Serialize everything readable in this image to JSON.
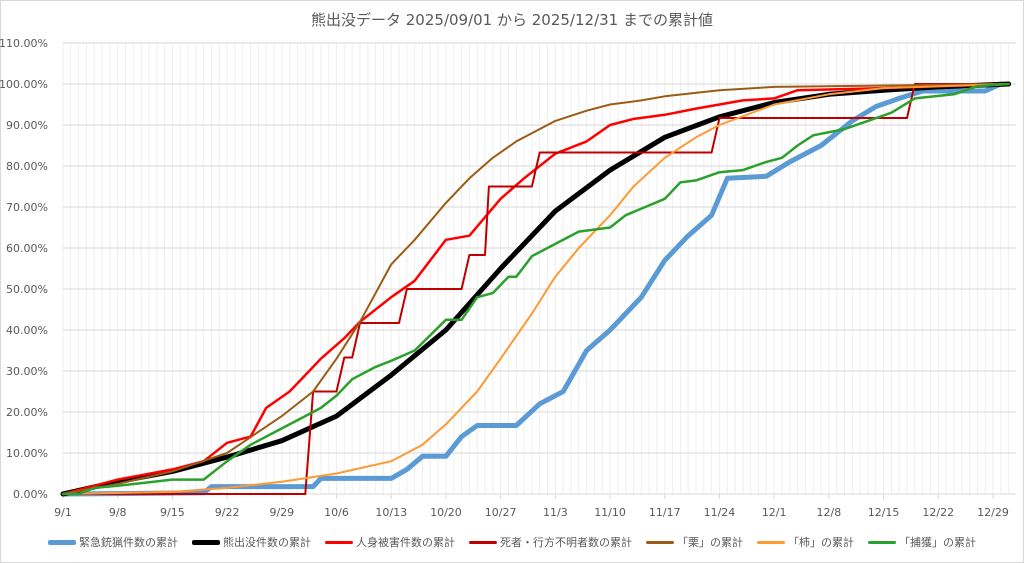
{
  "chart_data": {
    "type": "line",
    "title": "熊出没データ 2025/09/01 から 2025/12/31 までの累計値",
    "xlabel": "",
    "ylabel": "",
    "ylim": [
      0,
      110
    ],
    "y_ticks": [
      "0.00%",
      "10.00%",
      "20.00%",
      "30.00%",
      "40.00%",
      "50.00%",
      "60.00%",
      "70.00%",
      "80.00%",
      "90.00%",
      "100.00%",
      "110.00%"
    ],
    "x_ticks": [
      "9/1",
      "9/8",
      "9/15",
      "9/22",
      "9/29",
      "10/6",
      "10/13",
      "10/20",
      "10/27",
      "11/3",
      "11/10",
      "11/17",
      "11/24",
      "12/1",
      "12/8",
      "12/15",
      "12/22",
      "12/29"
    ],
    "x_range_days": [
      0,
      121
    ],
    "x_unit": "days since 2025-09-01",
    "grid": true,
    "legend_position": "bottom",
    "series": [
      {
        "name": "緊急銃猟件数の累計",
        "color": "#5b9bd5",
        "width": 5,
        "points": [
          [
            0,
            0
          ],
          [
            18,
            0.3
          ],
          [
            19,
            1.8
          ],
          [
            32,
            1.8
          ],
          [
            33,
            3.8
          ],
          [
            42,
            3.8
          ],
          [
            44,
            6
          ],
          [
            46,
            9.2
          ],
          [
            49,
            9.2
          ],
          [
            51,
            14
          ],
          [
            53,
            16.7
          ],
          [
            58,
            16.7
          ],
          [
            61,
            22
          ],
          [
            64,
            25
          ],
          [
            67,
            35
          ],
          [
            70,
            40
          ],
          [
            74,
            48
          ],
          [
            77,
            57
          ],
          [
            80,
            63
          ],
          [
            83,
            68
          ],
          [
            85,
            77
          ],
          [
            90,
            77.5
          ],
          [
            93,
            81
          ],
          [
            97,
            85
          ],
          [
            101,
            91
          ],
          [
            104,
            94.5
          ],
          [
            107,
            96.5
          ],
          [
            110,
            98.3
          ],
          [
            118,
            98.3
          ],
          [
            120,
            100
          ]
        ]
      },
      {
        "name": "熊出没件数の累計",
        "color": "#000000",
        "width": 5,
        "points": [
          [
            0,
            0
          ],
          [
            7,
            3
          ],
          [
            14,
            5.5
          ],
          [
            21,
            9
          ],
          [
            28,
            13
          ],
          [
            35,
            19
          ],
          [
            42,
            29
          ],
          [
            49,
            40
          ],
          [
            56,
            55
          ],
          [
            63,
            69
          ],
          [
            70,
            79
          ],
          [
            77,
            87
          ],
          [
            84,
            92
          ],
          [
            91,
            95.5
          ],
          [
            98,
            97.5
          ],
          [
            105,
            98.5
          ],
          [
            112,
            99.3
          ],
          [
            121,
            100
          ]
        ]
      },
      {
        "name": "人身被害件数の累計",
        "color": "#ff0000",
        "width": 2.5,
        "points": [
          [
            0,
            0
          ],
          [
            4,
            2
          ],
          [
            7,
            3.5
          ],
          [
            14,
            6
          ],
          [
            18,
            8
          ],
          [
            21,
            12.5
          ],
          [
            24,
            14
          ],
          [
            26,
            21
          ],
          [
            29,
            25
          ],
          [
            31,
            29
          ],
          [
            33,
            33
          ],
          [
            36,
            38
          ],
          [
            38,
            42
          ],
          [
            42,
            48
          ],
          [
            45,
            52
          ],
          [
            49,
            62
          ],
          [
            52,
            63
          ],
          [
            56,
            72
          ],
          [
            59,
            77
          ],
          [
            61,
            80
          ],
          [
            63,
            83
          ],
          [
            67,
            86
          ],
          [
            70,
            90
          ],
          [
            73,
            91.5
          ],
          [
            77,
            92.5
          ],
          [
            81,
            94
          ],
          [
            84,
            95
          ],
          [
            87,
            96
          ],
          [
            91,
            96.5
          ],
          [
            94,
            98.5
          ],
          [
            105,
            99
          ],
          [
            121,
            100
          ]
        ]
      },
      {
        "name": "死者・行方不明者数の累計",
        "color": "#c00000",
        "width": 2,
        "points": [
          [
            0,
            0
          ],
          [
            31,
            0
          ],
          [
            32,
            25
          ],
          [
            35,
            25
          ],
          [
            36,
            33.3
          ],
          [
            37,
            33.3
          ],
          [
            38,
            41.7
          ],
          [
            43,
            41.7
          ],
          [
            44,
            50
          ],
          [
            51,
            50
          ],
          [
            52,
            58.3
          ],
          [
            54,
            58.3
          ],
          [
            54.5,
            75
          ],
          [
            60,
            75
          ],
          [
            61,
            83.3
          ],
          [
            83,
            83.3
          ],
          [
            84,
            91.7
          ],
          [
            108,
            91.7
          ],
          [
            109,
            100
          ],
          [
            121,
            100
          ]
        ]
      },
      {
        "name": "「栗」の累計",
        "color": "#9c5b14",
        "width": 2,
        "points": [
          [
            0,
            0
          ],
          [
            7,
            2.5
          ],
          [
            14,
            5.5
          ],
          [
            21,
            10
          ],
          [
            28,
            19
          ],
          [
            32,
            25
          ],
          [
            35,
            33
          ],
          [
            38,
            42
          ],
          [
            42,
            56
          ],
          [
            45,
            62
          ],
          [
            49,
            71
          ],
          [
            52,
            77
          ],
          [
            55,
            82
          ],
          [
            58,
            86
          ],
          [
            63,
            91
          ],
          [
            67,
            93.5
          ],
          [
            70,
            95
          ],
          [
            74,
            96
          ],
          [
            77,
            97
          ],
          [
            84,
            98.5
          ],
          [
            91,
            99.3
          ],
          [
            121,
            100
          ]
        ]
      },
      {
        "name": "「柿」の累計",
        "color": "#ff9933",
        "width": 2,
        "points": [
          [
            0,
            0
          ],
          [
            14,
            0.5
          ],
          [
            21,
            1.5
          ],
          [
            28,
            3
          ],
          [
            35,
            5
          ],
          [
            42,
            8
          ],
          [
            46,
            12
          ],
          [
            49,
            17
          ],
          [
            53,
            25
          ],
          [
            56,
            33
          ],
          [
            60,
            44
          ],
          [
            63,
            53
          ],
          [
            66,
            60
          ],
          [
            70,
            68
          ],
          [
            73,
            75
          ],
          [
            77,
            82
          ],
          [
            81,
            87
          ],
          [
            84,
            90
          ],
          [
            91,
            95
          ],
          [
            98,
            97.5
          ],
          [
            105,
            99
          ],
          [
            121,
            100
          ]
        ]
      },
      {
        "name": "「捕獲」の累計",
        "color": "#2ca02c",
        "width": 2.5,
        "points": [
          [
            0,
            0
          ],
          [
            2,
            0
          ],
          [
            4,
            1.5
          ],
          [
            7,
            2
          ],
          [
            14,
            3.5
          ],
          [
            18,
            3.5
          ],
          [
            21,
            8
          ],
          [
            24,
            12
          ],
          [
            28,
            16
          ],
          [
            31,
            19
          ],
          [
            33,
            21
          ],
          [
            35,
            24
          ],
          [
            37,
            28
          ],
          [
            40,
            31
          ],
          [
            42,
            32.5
          ],
          [
            45,
            35
          ],
          [
            49,
            42.5
          ],
          [
            51,
            42.5
          ],
          [
            53,
            48
          ],
          [
            55,
            49
          ],
          [
            57,
            53
          ],
          [
            58,
            53
          ],
          [
            60,
            58
          ],
          [
            63,
            61
          ],
          [
            66,
            64
          ],
          [
            70,
            65
          ],
          [
            72,
            68
          ],
          [
            77,
            72
          ],
          [
            79,
            76
          ],
          [
            81,
            76.5
          ],
          [
            84,
            78.5
          ],
          [
            87,
            79
          ],
          [
            90,
            81
          ],
          [
            92,
            82
          ],
          [
            94,
            85
          ],
          [
            96,
            87.5
          ],
          [
            100,
            89
          ],
          [
            103,
            91
          ],
          [
            106,
            93
          ],
          [
            109,
            96.5
          ],
          [
            114,
            97.5
          ],
          [
            117,
            99.5
          ],
          [
            121,
            100
          ]
        ]
      }
    ]
  },
  "legend": [
    {
      "label": "緊急銃猟件数の累計",
      "color": "#5b9bd5",
      "thick": 5
    },
    {
      "label": "熊出没件数の累計",
      "color": "#000000",
      "thick": 5
    },
    {
      "label": "人身被害件数の累計",
      "color": "#ff0000",
      "thick": 3
    },
    {
      "label": "死者・行方不明者数の累計",
      "color": "#c00000",
      "thick": 3
    },
    {
      "label": "「栗」の累計",
      "color": "#9c5b14",
      "thick": 3
    },
    {
      "label": "「柿」の累計",
      "color": "#ff9933",
      "thick": 3
    },
    {
      "label": "「捕獲」の累計",
      "color": "#2ca02c",
      "thick": 3
    }
  ]
}
